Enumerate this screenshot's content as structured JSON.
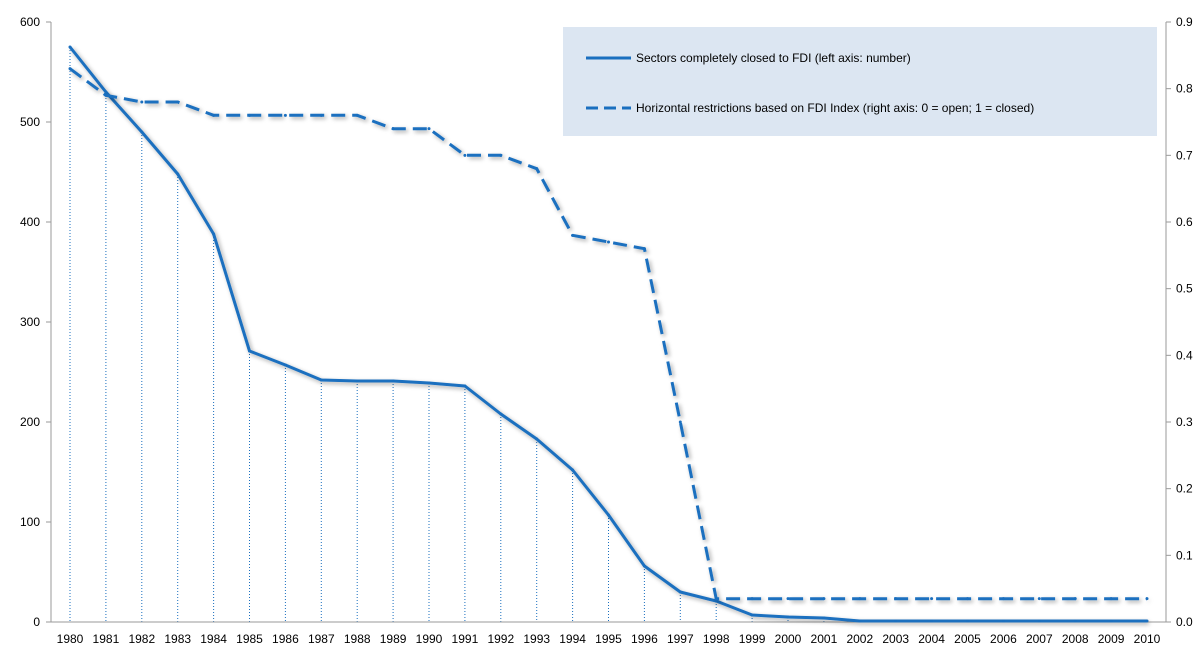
{
  "chart_data": {
    "type": "line",
    "x": [
      "1980",
      "1981",
      "1982",
      "1983",
      "1984",
      "1985",
      "1986",
      "1987",
      "1988",
      "1989",
      "1990",
      "1991",
      "1992",
      "1993",
      "1994",
      "1995",
      "1996",
      "1997",
      "1998",
      "1999",
      "2000",
      "2001",
      "2002",
      "2003",
      "2004",
      "2005",
      "2006",
      "2007",
      "2008",
      "2009",
      "2010"
    ],
    "series": [
      {
        "name": "Sectors completely closed to FDI (left axis: number)",
        "axis": "left",
        "style": "solid",
        "color": "#1a6fbf",
        "values": [
          575,
          530,
          490,
          448,
          388,
          271,
          257,
          242,
          241,
          241,
          239,
          236,
          208,
          183,
          152,
          107,
          56,
          30,
          21,
          7,
          5,
          4,
          1,
          1,
          1,
          1,
          1,
          1,
          1,
          1,
          1
        ]
      },
      {
        "name": "Horizontal restrictions based on FDI Index (right axis: 0 = open; 1 = closed)",
        "axis": "right",
        "style": "dashed",
        "color": "#1a6fbf",
        "values": [
          0.83,
          0.79,
          0.78,
          0.78,
          0.76,
          0.76,
          0.76,
          0.76,
          0.76,
          0.74,
          0.74,
          0.7,
          0.7,
          0.68,
          0.58,
          0.57,
          0.56,
          0.3,
          0.035,
          0.035,
          0.035,
          0.035,
          0.035,
          0.035,
          0.035,
          0.035,
          0.035,
          0.035,
          0.035,
          0.035,
          0.035
        ]
      }
    ],
    "left_axis": {
      "range": [
        0,
        600
      ],
      "ticks": [
        "0",
        "100",
        "200",
        "300",
        "400",
        "500",
        "600"
      ]
    },
    "right_axis": {
      "range": [
        0,
        0.9
      ],
      "ticks": [
        "0.0",
        "0.1",
        "0.2",
        "0.3",
        "0.4",
        "0.5",
        "0.6",
        "0.7",
        "0.8",
        "0.9"
      ]
    },
    "title": "",
    "xlabel": "",
    "ylabel": "",
    "grid": "vertical dotted drop lines from the solid series",
    "legend": {
      "placement": "top-right",
      "background": "#dce6f2"
    }
  }
}
